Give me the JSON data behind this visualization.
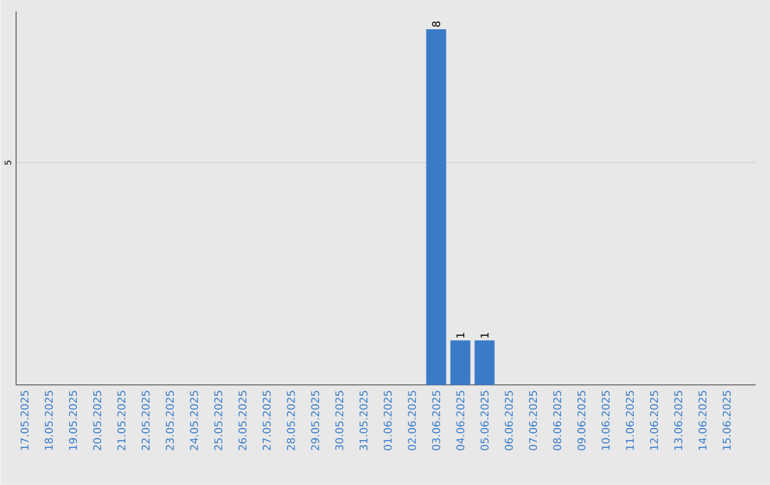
{
  "chart_data": {
    "type": "bar",
    "categories": [
      "17.05.2025",
      "18.05.2025",
      "19.05.2025",
      "20.05.2025",
      "21.05.2025",
      "22.05.2025",
      "23.05.2025",
      "24.05.2025",
      "25.05.2025",
      "26.05.2025",
      "27.05.2025",
      "28.05.2025",
      "29.05.2025",
      "30.05.2025",
      "31.05.2025",
      "01.06.2025",
      "02.06.2025",
      "03.06.2025",
      "04.06.2025",
      "05.06.2025",
      "06.06.2025",
      "07.06.2025",
      "08.06.2025",
      "09.06.2025",
      "10.06.2025",
      "11.06.2025",
      "12.06.2025",
      "13.06.2025",
      "14.06.2025",
      "15.06.2025"
    ],
    "values": [
      null,
      null,
      null,
      null,
      null,
      null,
      null,
      null,
      null,
      null,
      null,
      null,
      null,
      null,
      null,
      null,
      null,
      8,
      1,
      1,
      null,
      null,
      null,
      null,
      null,
      null,
      null,
      null,
      null,
      null
    ],
    "data_labels": true,
    "color": "#3a7bc8",
    "ylim": [
      0,
      8.4
    ],
    "yticks": [
      5
    ],
    "grid": "y"
  }
}
